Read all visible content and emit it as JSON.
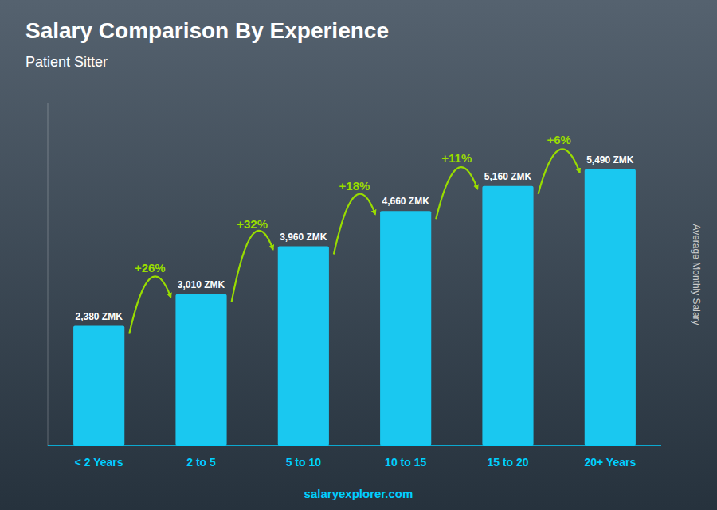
{
  "chart_data": {
    "type": "bar",
    "title": "Salary Comparison By Experience",
    "subtitle": "Patient Sitter",
    "ylabel": "Average Monthly Salary",
    "categories": [
      "< 2 Years",
      "2 to 5",
      "5 to 10",
      "10 to 15",
      "15 to 20",
      "20+ Years"
    ],
    "values": [
      2380,
      3010,
      3960,
      4660,
      5160,
      5490
    ],
    "value_labels": [
      "2,380 ZMK",
      "3,010 ZMK",
      "3,960 ZMK",
      "4,660 ZMK",
      "5,160 ZMK",
      "5,490 ZMK"
    ],
    "data_labels": true,
    "color": "#1ac8f0",
    "ylim": [
      0,
      6800
    ],
    "tick_labels": "x",
    "grid": false,
    "annotations": [
      {
        "text": "+26%",
        "color": "#99dd00"
      },
      {
        "text": "+32%",
        "color": "#99dd00"
      },
      {
        "text": "+18%",
        "color": "#99dd00"
      },
      {
        "text": "+11%",
        "color": "#99dd00"
      },
      {
        "text": "+6%",
        "color": "#99dd00"
      }
    ],
    "source": "salaryexplorer.com"
  }
}
